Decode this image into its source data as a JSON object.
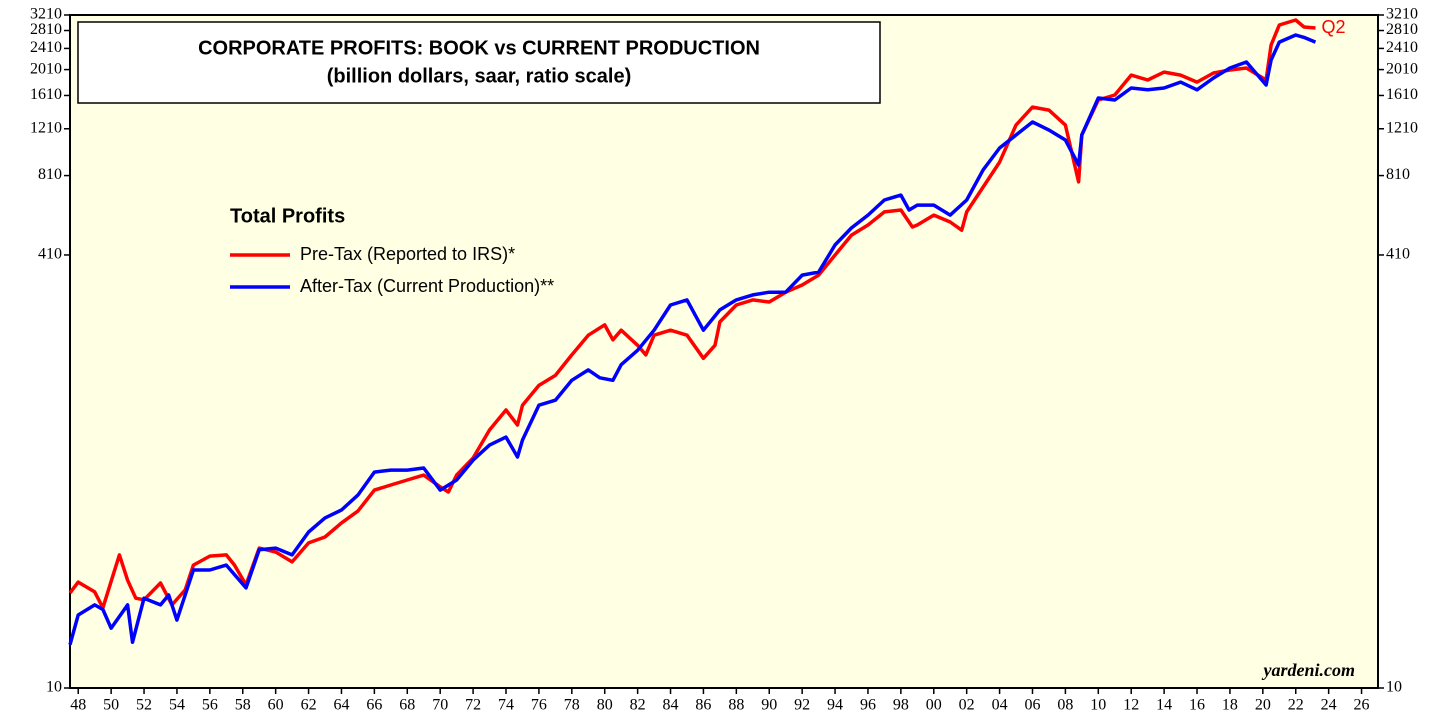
{
  "chart_data": {
    "type": "line",
    "title": "CORPORATE PROFITS: BOOK vs CURRENT PRODUCTION",
    "subtitle": "(billion dollars, saar, ratio scale)",
    "legend_title": "Total Profits",
    "annotation": "Q2",
    "source": "yardeni.com",
    "log_scale": true,
    "xlim": [
      1947.5,
      2027
    ],
    "xticks": [
      {
        "value": 1948,
        "label": "48"
      },
      {
        "value": 1950,
        "label": "50"
      },
      {
        "value": 1952,
        "label": "52"
      },
      {
        "value": 1954,
        "label": "54"
      },
      {
        "value": 1956,
        "label": "56"
      },
      {
        "value": 1958,
        "label": "58"
      },
      {
        "value": 1960,
        "label": "60"
      },
      {
        "value": 1962,
        "label": "62"
      },
      {
        "value": 1964,
        "label": "64"
      },
      {
        "value": 1966,
        "label": "66"
      },
      {
        "value": 1968,
        "label": "68"
      },
      {
        "value": 1970,
        "label": "70"
      },
      {
        "value": 1972,
        "label": "72"
      },
      {
        "value": 1974,
        "label": "74"
      },
      {
        "value": 1976,
        "label": "76"
      },
      {
        "value": 1978,
        "label": "78"
      },
      {
        "value": 1980,
        "label": "80"
      },
      {
        "value": 1982,
        "label": "82"
      },
      {
        "value": 1984,
        "label": "84"
      },
      {
        "value": 1986,
        "label": "86"
      },
      {
        "value": 1988,
        "label": "88"
      },
      {
        "value": 1990,
        "label": "90"
      },
      {
        "value": 1992,
        "label": "92"
      },
      {
        "value": 1994,
        "label": "94"
      },
      {
        "value": 1996,
        "label": "96"
      },
      {
        "value": 1998,
        "label": "98"
      },
      {
        "value": 2000,
        "label": "00"
      },
      {
        "value": 2002,
        "label": "02"
      },
      {
        "value": 2004,
        "label": "04"
      },
      {
        "value": 2006,
        "label": "06"
      },
      {
        "value": 2008,
        "label": "08"
      },
      {
        "value": 2010,
        "label": "10"
      },
      {
        "value": 2012,
        "label": "12"
      },
      {
        "value": 2014,
        "label": "14"
      },
      {
        "value": 2016,
        "label": "16"
      },
      {
        "value": 2018,
        "label": "18"
      },
      {
        "value": 2020,
        "label": "20"
      },
      {
        "value": 2022,
        "label": "22"
      },
      {
        "value": 2024,
        "label": "24"
      },
      {
        "value": 2026,
        "label": "26"
      }
    ],
    "ylim": [
      10,
      3210
    ],
    "yticks": [
      10,
      410,
      810,
      1210,
      1610,
      2010,
      2410,
      2810,
      3210
    ],
    "series": [
      {
        "name": "Pre-Tax (Reported to IRS)*",
        "color": "#ff0000",
        "x": [
          1947.5,
          1948,
          1949,
          1949.5,
          1950.5,
          1951,
          1951.5,
          1952,
          1953,
          1953.7,
          1954.5,
          1955,
          1956,
          1957,
          1957.5,
          1958.2,
          1959,
          1960,
          1961,
          1962,
          1963,
          1964,
          1965,
          1966,
          1967,
          1968,
          1969,
          1970,
          1970.5,
          1971,
          1972,
          1973,
          1974,
          1974.7,
          1975,
          1976,
          1977,
          1978,
          1979,
          1980,
          1980.5,
          1981,
          1982,
          1982.5,
          1983,
          1984,
          1985,
          1986,
          1986.7,
          1987,
          1988,
          1989,
          1990,
          1991,
          1992,
          1993,
          1994,
          1995,
          1996,
          1997,
          1998,
          1998.7,
          1999,
          2000,
          2001,
          2001.7,
          2002,
          2003,
          2004,
          2005,
          2006,
          2007,
          2008,
          2008.8,
          2009,
          2010,
          2011,
          2012,
          2013,
          2014,
          2015,
          2016,
          2017,
          2018,
          2019,
          2020.2,
          2020.5,
          2021,
          2022,
          2022.5,
          2023.2
        ],
        "values": [
          22.6,
          24.8,
          22.8,
          19.9,
          31.3,
          25.2,
          21.6,
          21.3,
          24.6,
          20.4,
          23.2,
          28.7,
          31.0,
          31.3,
          28.7,
          24.2,
          33.2,
          32.1,
          29.5,
          34.7,
          36.5,
          41.2,
          45.6,
          54.6,
          57.0,
          59.5,
          62.1,
          56.1,
          53.7,
          62.1,
          71.9,
          91.4,
          108.5,
          95.4,
          113,
          134,
          146,
          174,
          206,
          225,
          198,
          215,
          189,
          174,
          206,
          215,
          206,
          169,
          189,
          231,
          267,
          279,
          274,
          298,
          317,
          345,
          410,
          486,
          530,
          593,
          603,
          521,
          530,
          577,
          544,
          507,
          593,
          734,
          909,
          1249,
          1457,
          1420,
          1249,
          767,
          1147,
          1548,
          1616,
          1918,
          1838,
          1967,
          1918,
          1806,
          1952,
          2003,
          2038,
          1838,
          2481,
          2945,
          3074,
          2895,
          2871
        ]
      },
      {
        "name": "After-Tax (Current Production)**",
        "color": "#0000ff",
        "x": [
          1947.5,
          1948,
          1949,
          1949.5,
          1950,
          1951,
          1951.3,
          1952,
          1953,
          1953.5,
          1954,
          1955,
          1956,
          1957,
          1958.2,
          1959,
          1960,
          1961,
          1962,
          1963,
          1964,
          1965,
          1966,
          1967,
          1968,
          1969,
          1970,
          1971,
          1972,
          1973,
          1974,
          1974.7,
          1975,
          1976,
          1977,
          1978,
          1979,
          1979.7,
          1980.5,
          1981,
          1982,
          1983,
          1984,
          1985,
          1986,
          1987,
          1988,
          1989,
          1990,
          1991,
          1992,
          1993,
          1994,
          1995,
          1996,
          1997,
          1998,
          1998.5,
          1999,
          2000,
          2001,
          2002,
          2003,
          2004,
          2005,
          2006,
          2007,
          2008,
          2008.8,
          2009,
          2010,
          2011,
          2012,
          2013,
          2014,
          2015,
          2016,
          2017,
          2018,
          2019,
          2020.2,
          2020.5,
          2021,
          2022,
          2022.5,
          2023.2
        ],
        "values": [
          14.5,
          18.7,
          20.4,
          19.6,
          16.7,
          20.4,
          14.8,
          21.6,
          20.4,
          22.2,
          17.9,
          27.5,
          27.5,
          28.7,
          23.6,
          32.7,
          33.2,
          31.3,
          38.1,
          43.0,
          46.0,
          52.3,
          63.7,
          64.8,
          64.8,
          66.0,
          54.6,
          59.5,
          70.6,
          80.3,
          86.0,
          72.5,
          83.9,
          113,
          118,
          140,
          153,
          143,
          140,
          160,
          181,
          215,
          267,
          279,
          215,
          256,
          279,
          291,
          298,
          298,
          345,
          354,
          447,
          517,
          577,
          657,
          685,
          603,
          629,
          629,
          577,
          657,
          850,
          1026,
          1147,
          1282,
          1197,
          1099,
          887,
          1147,
          1575,
          1548,
          1716,
          1690,
          1716,
          1806,
          1690,
          1870,
          2038,
          2145,
          1761,
          2182,
          2545,
          2704,
          2650,
          2545
        ]
      }
    ]
  }
}
